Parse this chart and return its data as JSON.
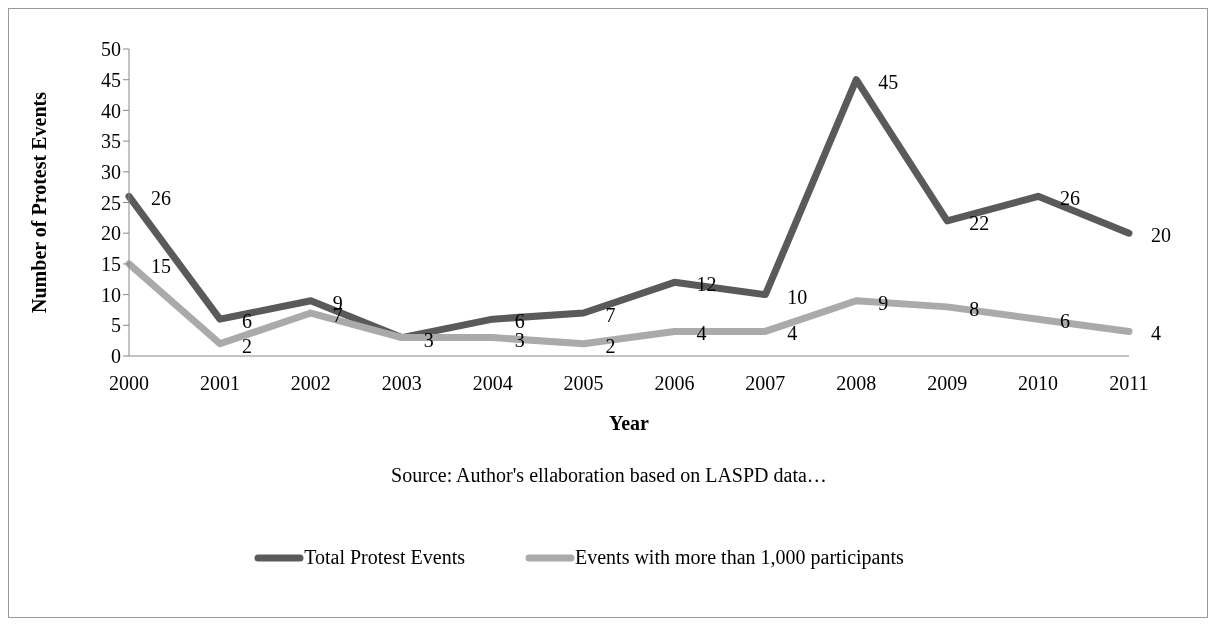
{
  "chart_data": {
    "type": "line",
    "xlabel": "Year",
    "ylabel": "Number of Protest Events",
    "categories": [
      "2000",
      "2001",
      "2002",
      "2003",
      "2004",
      "2005",
      "2006",
      "2007",
      "2008",
      "2009",
      "2010",
      "2011"
    ],
    "series": [
      {
        "name": "Total Protest Events",
        "color": "#5a5a5a",
        "values": [
          26,
          6,
          9,
          3,
          6,
          7,
          12,
          10,
          45,
          22,
          26,
          20
        ]
      },
      {
        "name": "Events with more than 1,000 participants",
        "color": "#aaaaaa",
        "values": [
          15,
          2,
          7,
          3,
          3,
          2,
          4,
          4,
          9,
          8,
          6,
          4
        ],
        "value_labels": [
          "15",
          "2",
          "7",
          null,
          "3",
          "2",
          "4",
          "4",
          "9",
          "8",
          "6",
          "4"
        ]
      }
    ],
    "ylim": [
      0,
      50
    ],
    "yticks": [
      0,
      5,
      10,
      15,
      20,
      25,
      30,
      35,
      40,
      45,
      50
    ],
    "annotations": [
      "Source: Author's ellaboration based on LASPD data…"
    ],
    "data_labels": true,
    "grid": false,
    "legend": "bottom",
    "marker": "none",
    "line_style": "solid"
  }
}
